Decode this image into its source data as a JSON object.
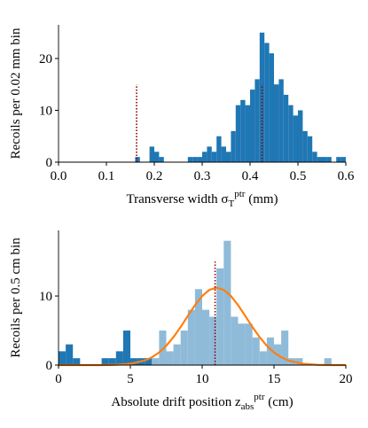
{
  "chart_data": [
    {
      "type": "histogram",
      "xlabel": "Transverse width σ_T^ptr (mm)",
      "ylabel": "Recoils per 0.02 mm bin",
      "bins": [
        0.15,
        0.16,
        0.17,
        0.18,
        0.19,
        0.2,
        0.21,
        0.22,
        0.23,
        0.24,
        0.25,
        0.26,
        0.27,
        0.28,
        0.29,
        0.3,
        0.31,
        0.32,
        0.33,
        0.34,
        0.35,
        0.36,
        0.37,
        0.38,
        0.39,
        0.4,
        0.41,
        0.42,
        0.43,
        0.44,
        0.45,
        0.46,
        0.47,
        0.48,
        0.49,
        0.5,
        0.51,
        0.52,
        0.53,
        0.54,
        0.55,
        0.56,
        0.57,
        0.58,
        0.59,
        0.6
      ],
      "series": [
        {
          "color": "#1f77b4",
          "values": [
            0,
            1,
            0,
            0,
            3,
            2,
            1,
            0,
            0,
            0,
            0,
            0,
            1,
            1,
            1,
            2,
            3,
            2,
            5,
            3,
            2,
            6,
            11,
            12,
            11,
            14,
            16,
            25,
            23,
            21,
            15,
            16,
            13,
            11,
            9,
            10,
            6,
            5,
            2,
            1,
            1,
            1,
            0,
            1,
            1
          ]
        }
      ],
      "vlines": [
        {
          "x": 0.163,
          "ymax": 15,
          "color": "#8b0000"
        },
        {
          "x": 0.425,
          "ymax": 15,
          "color": "#8b0000"
        }
      ],
      "xlim": [
        0,
        0.6
      ],
      "xticks": [
        {
          "value": 0,
          "label": "0.0"
        },
        0.1,
        0.2,
        0.3,
        0.4,
        0.5,
        0.6
      ],
      "ylim": [
        0,
        26.5
      ],
      "yticks": [
        0,
        10,
        20
      ]
    },
    {
      "type": "histogram",
      "xlabel": "Absolute drift position z_abs^ptr (cm)",
      "ylabel": "Recoils per 0.5 cm bin",
      "bins": [
        0,
        0.5,
        1,
        1.5,
        2,
        2.5,
        3,
        3.5,
        4,
        4.5,
        5,
        5.5,
        6,
        6.5,
        7,
        7.5,
        8,
        8.5,
        9,
        9.5,
        10,
        10.5,
        11,
        11.5,
        12,
        12.5,
        13,
        13.5,
        14,
        14.5,
        15,
        15.5,
        16,
        16.5,
        17,
        17.5,
        18,
        18.5,
        19,
        19.5,
        20
      ],
      "series": [
        {
          "color": "#1f77b4",
          "values": [
            2,
            3,
            1,
            0,
            0,
            0,
            1,
            1,
            2,
            5,
            1,
            1,
            1,
            0,
            0,
            0,
            0,
            0,
            0,
            0,
            0,
            0,
            0,
            0,
            0,
            0,
            0,
            0,
            0,
            0,
            0,
            0,
            0,
            0,
            0,
            0,
            0,
            0,
            0,
            0
          ]
        },
        {
          "color": "#8fbbd9",
          "values": [
            0,
            0,
            0,
            0,
            0,
            0,
            0,
            0,
            0,
            0,
            0,
            0,
            0,
            1,
            5,
            2,
            3,
            5,
            8,
            11,
            8,
            7,
            14,
            18,
            7,
            6,
            6,
            4,
            2,
            4,
            3,
            5,
            1,
            1,
            0,
            0,
            0,
            1,
            0,
            0
          ]
        }
      ],
      "curve": {
        "color": "#ff7f0e",
        "x": [
          0,
          1,
          2,
          3,
          4,
          5,
          6,
          6.5,
          7,
          7.5,
          8,
          8.5,
          9,
          9.5,
          10,
          10.5,
          11,
          11.5,
          12,
          12.5,
          13,
          13.5,
          14,
          14.5,
          15,
          15.5,
          16,
          17,
          18,
          19,
          20
        ],
        "values": [
          0,
          0,
          0,
          0,
          0.04,
          0.19,
          0.66,
          1.13,
          1.83,
          2.79,
          4.04,
          5.51,
          7.11,
          8.68,
          10.0,
          10.89,
          11.2,
          10.89,
          10.0,
          8.68,
          7.11,
          5.51,
          4.04,
          2.79,
          1.83,
          1.13,
          0.66,
          0.19,
          0.04,
          0,
          0
        ]
      },
      "vlines": [
        {
          "x": 10.9,
          "ymax": 15,
          "color": "#8b0000"
        }
      ],
      "xlim": [
        0,
        20
      ],
      "xticks": [
        0,
        5,
        10,
        15,
        20
      ],
      "ylim": [
        0,
        19.5
      ],
      "yticks": [
        0,
        10
      ]
    }
  ]
}
